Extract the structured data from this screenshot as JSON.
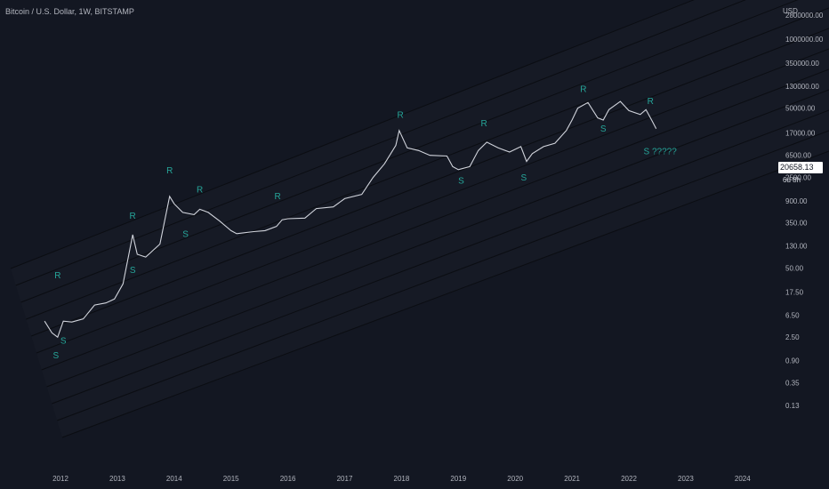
{
  "header": {
    "symbol_line": "Bitcoin / U.S. Dollar, 1W, BITSTAMP"
  },
  "price_scale": {
    "currency": "USD",
    "labels": [
      "8000000.00",
      "2800000.00",
      "1000000.00",
      "350000.00",
      "130000.00",
      "50000.00",
      "17000.00",
      "6500.00",
      "2500.00",
      "900.00",
      "350.00",
      "130.00",
      "50.00",
      "17.50",
      "6.50",
      "2.50",
      "0.90",
      "0.35",
      "0.13"
    ]
  },
  "last_price": {
    "value": "20658.13",
    "countdown": "6d 8h"
  },
  "chart_data": {
    "type": "line",
    "title": "Bitcoin / U.S. Dollar, 1W, BITSTAMP",
    "y_scale": "log",
    "ylim": [
      0.1,
      15000000
    ],
    "xlim": [
      2011.8,
      2024.5
    ],
    "x_ticks": [
      "2012",
      "2013",
      "2014",
      "2015",
      "2016",
      "2017",
      "2018",
      "2019",
      "2020",
      "2021",
      "2022",
      "2023",
      "2024"
    ],
    "series": [
      {
        "values_approx": [
          [
            2011.72,
            5
          ],
          [
            2011.85,
            3
          ],
          [
            2011.95,
            2.5
          ],
          [
            2012.05,
            5
          ],
          [
            2012.2,
            4.8
          ],
          [
            2012.4,
            5.5
          ],
          [
            2012.6,
            10
          ],
          [
            2012.8,
            11
          ],
          [
            2012.95,
            13
          ],
          [
            2013.1,
            25
          ],
          [
            2013.27,
            210
          ],
          [
            2013.35,
            90
          ],
          [
            2013.5,
            80
          ],
          [
            2013.75,
            140
          ],
          [
            2013.92,
            1100
          ],
          [
            2014.0,
            800
          ],
          [
            2014.15,
            550
          ],
          [
            2014.35,
            500
          ],
          [
            2014.45,
            630
          ],
          [
            2014.6,
            550
          ],
          [
            2014.8,
            380
          ],
          [
            2015.0,
            250
          ],
          [
            2015.1,
            220
          ],
          [
            2015.4,
            240
          ],
          [
            2015.6,
            250
          ],
          [
            2015.8,
            300
          ],
          [
            2015.9,
            400
          ],
          [
            2016.0,
            420
          ],
          [
            2016.3,
            430
          ],
          [
            2016.5,
            650
          ],
          [
            2016.8,
            700
          ],
          [
            2017.0,
            1000
          ],
          [
            2017.3,
            1200
          ],
          [
            2017.5,
            2500
          ],
          [
            2017.7,
            4500
          ],
          [
            2017.9,
            10000
          ],
          [
            2017.96,
            19000
          ],
          [
            2018.1,
            9000
          ],
          [
            2018.3,
            8000
          ],
          [
            2018.5,
            6500
          ],
          [
            2018.8,
            6300
          ],
          [
            2018.9,
            4000
          ],
          [
            2019.0,
            3500
          ],
          [
            2019.2,
            4000
          ],
          [
            2019.35,
            8000
          ],
          [
            2019.5,
            11500
          ],
          [
            2019.7,
            9000
          ],
          [
            2019.9,
            7500
          ],
          [
            2020.1,
            9500
          ],
          [
            2020.2,
            5000
          ],
          [
            2020.3,
            7000
          ],
          [
            2020.5,
            9500
          ],
          [
            2020.7,
            11000
          ],
          [
            2020.9,
            19000
          ],
          [
            2021.0,
            30000
          ],
          [
            2021.1,
            50000
          ],
          [
            2021.28,
            64000
          ],
          [
            2021.45,
            33000
          ],
          [
            2021.55,
            30000
          ],
          [
            2021.65,
            47000
          ],
          [
            2021.85,
            67000
          ],
          [
            2022.0,
            45000
          ],
          [
            2022.2,
            38000
          ],
          [
            2022.3,
            47000
          ],
          [
            2022.4,
            30000
          ],
          [
            2022.48,
            20658
          ]
        ]
      }
    ],
    "annotations": [
      {
        "text": "R",
        "x": 2011.95,
        "y": 32
      },
      {
        "text": "S",
        "x": 2011.92,
        "y": 1.0
      },
      {
        "text": "S",
        "x": 2012.05,
        "y": 1.9
      },
      {
        "text": "R",
        "x": 2013.27,
        "y": 420
      },
      {
        "text": "S",
        "x": 2013.27,
        "y": 40
      },
      {
        "text": "R",
        "x": 2013.92,
        "y": 3000
      },
      {
        "text": "R",
        "x": 2014.45,
        "y": 1300
      },
      {
        "text": "S",
        "x": 2014.2,
        "y": 190
      },
      {
        "text": "R",
        "x": 2015.82,
        "y": 980
      },
      {
        "text": "R",
        "x": 2017.98,
        "y": 33000
      },
      {
        "text": "S",
        "x": 2019.05,
        "y": 1900
      },
      {
        "text": "R",
        "x": 2019.45,
        "y": 23000
      },
      {
        "text": "S",
        "x": 2020.15,
        "y": 2200
      },
      {
        "text": "R",
        "x": 2021.2,
        "y": 100000
      },
      {
        "text": "S",
        "x": 2021.55,
        "y": 18000
      },
      {
        "text": "R",
        "x": 2022.38,
        "y": 60000
      },
      {
        "text": "S ?????",
        "x": 2022.55,
        "y": 6800
      }
    ],
    "channel_lines_count": 11,
    "grid": false,
    "colors": {
      "background": "#131722",
      "price": "#d1d4dc",
      "annotation": "#26a69a",
      "channel": "#0b0d12",
      "axis_text": "#b2b5be"
    }
  }
}
